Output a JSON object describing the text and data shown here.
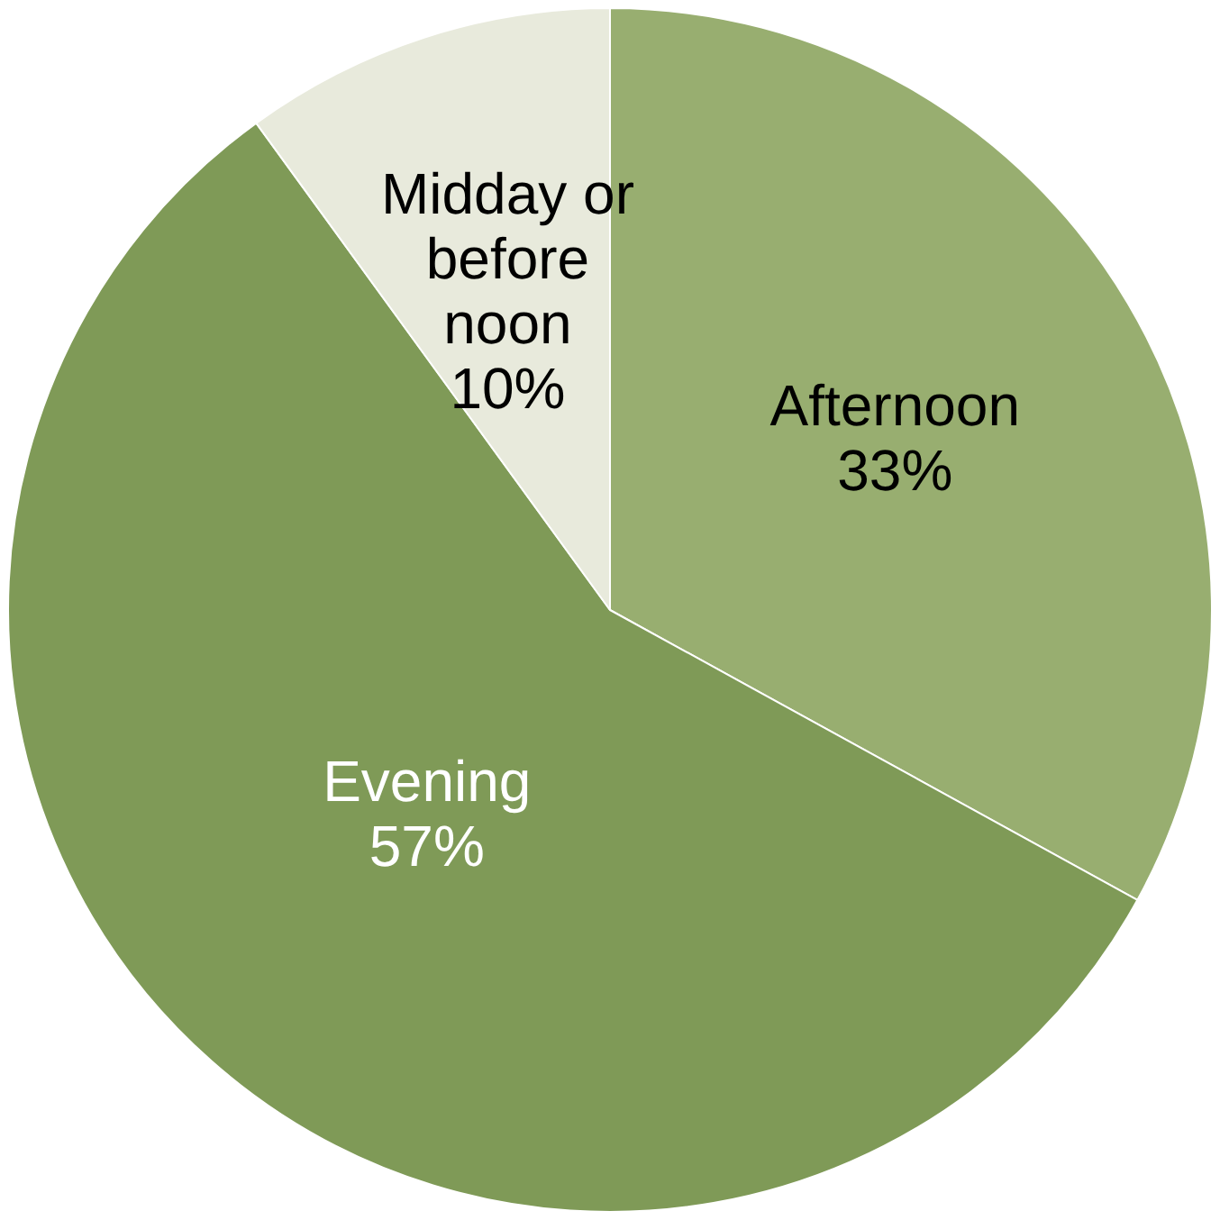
{
  "chart_data": {
    "type": "pie",
    "categories": [
      "Afternoon",
      "Evening",
      "Midday or before noon"
    ],
    "values": [
      33,
      57,
      10
    ],
    "colors": [
      "#98ae70",
      "#7f9a57",
      "#e8eadc"
    ],
    "value_labels": [
      "33%",
      "57%",
      "10%"
    ],
    "legend": false
  }
}
